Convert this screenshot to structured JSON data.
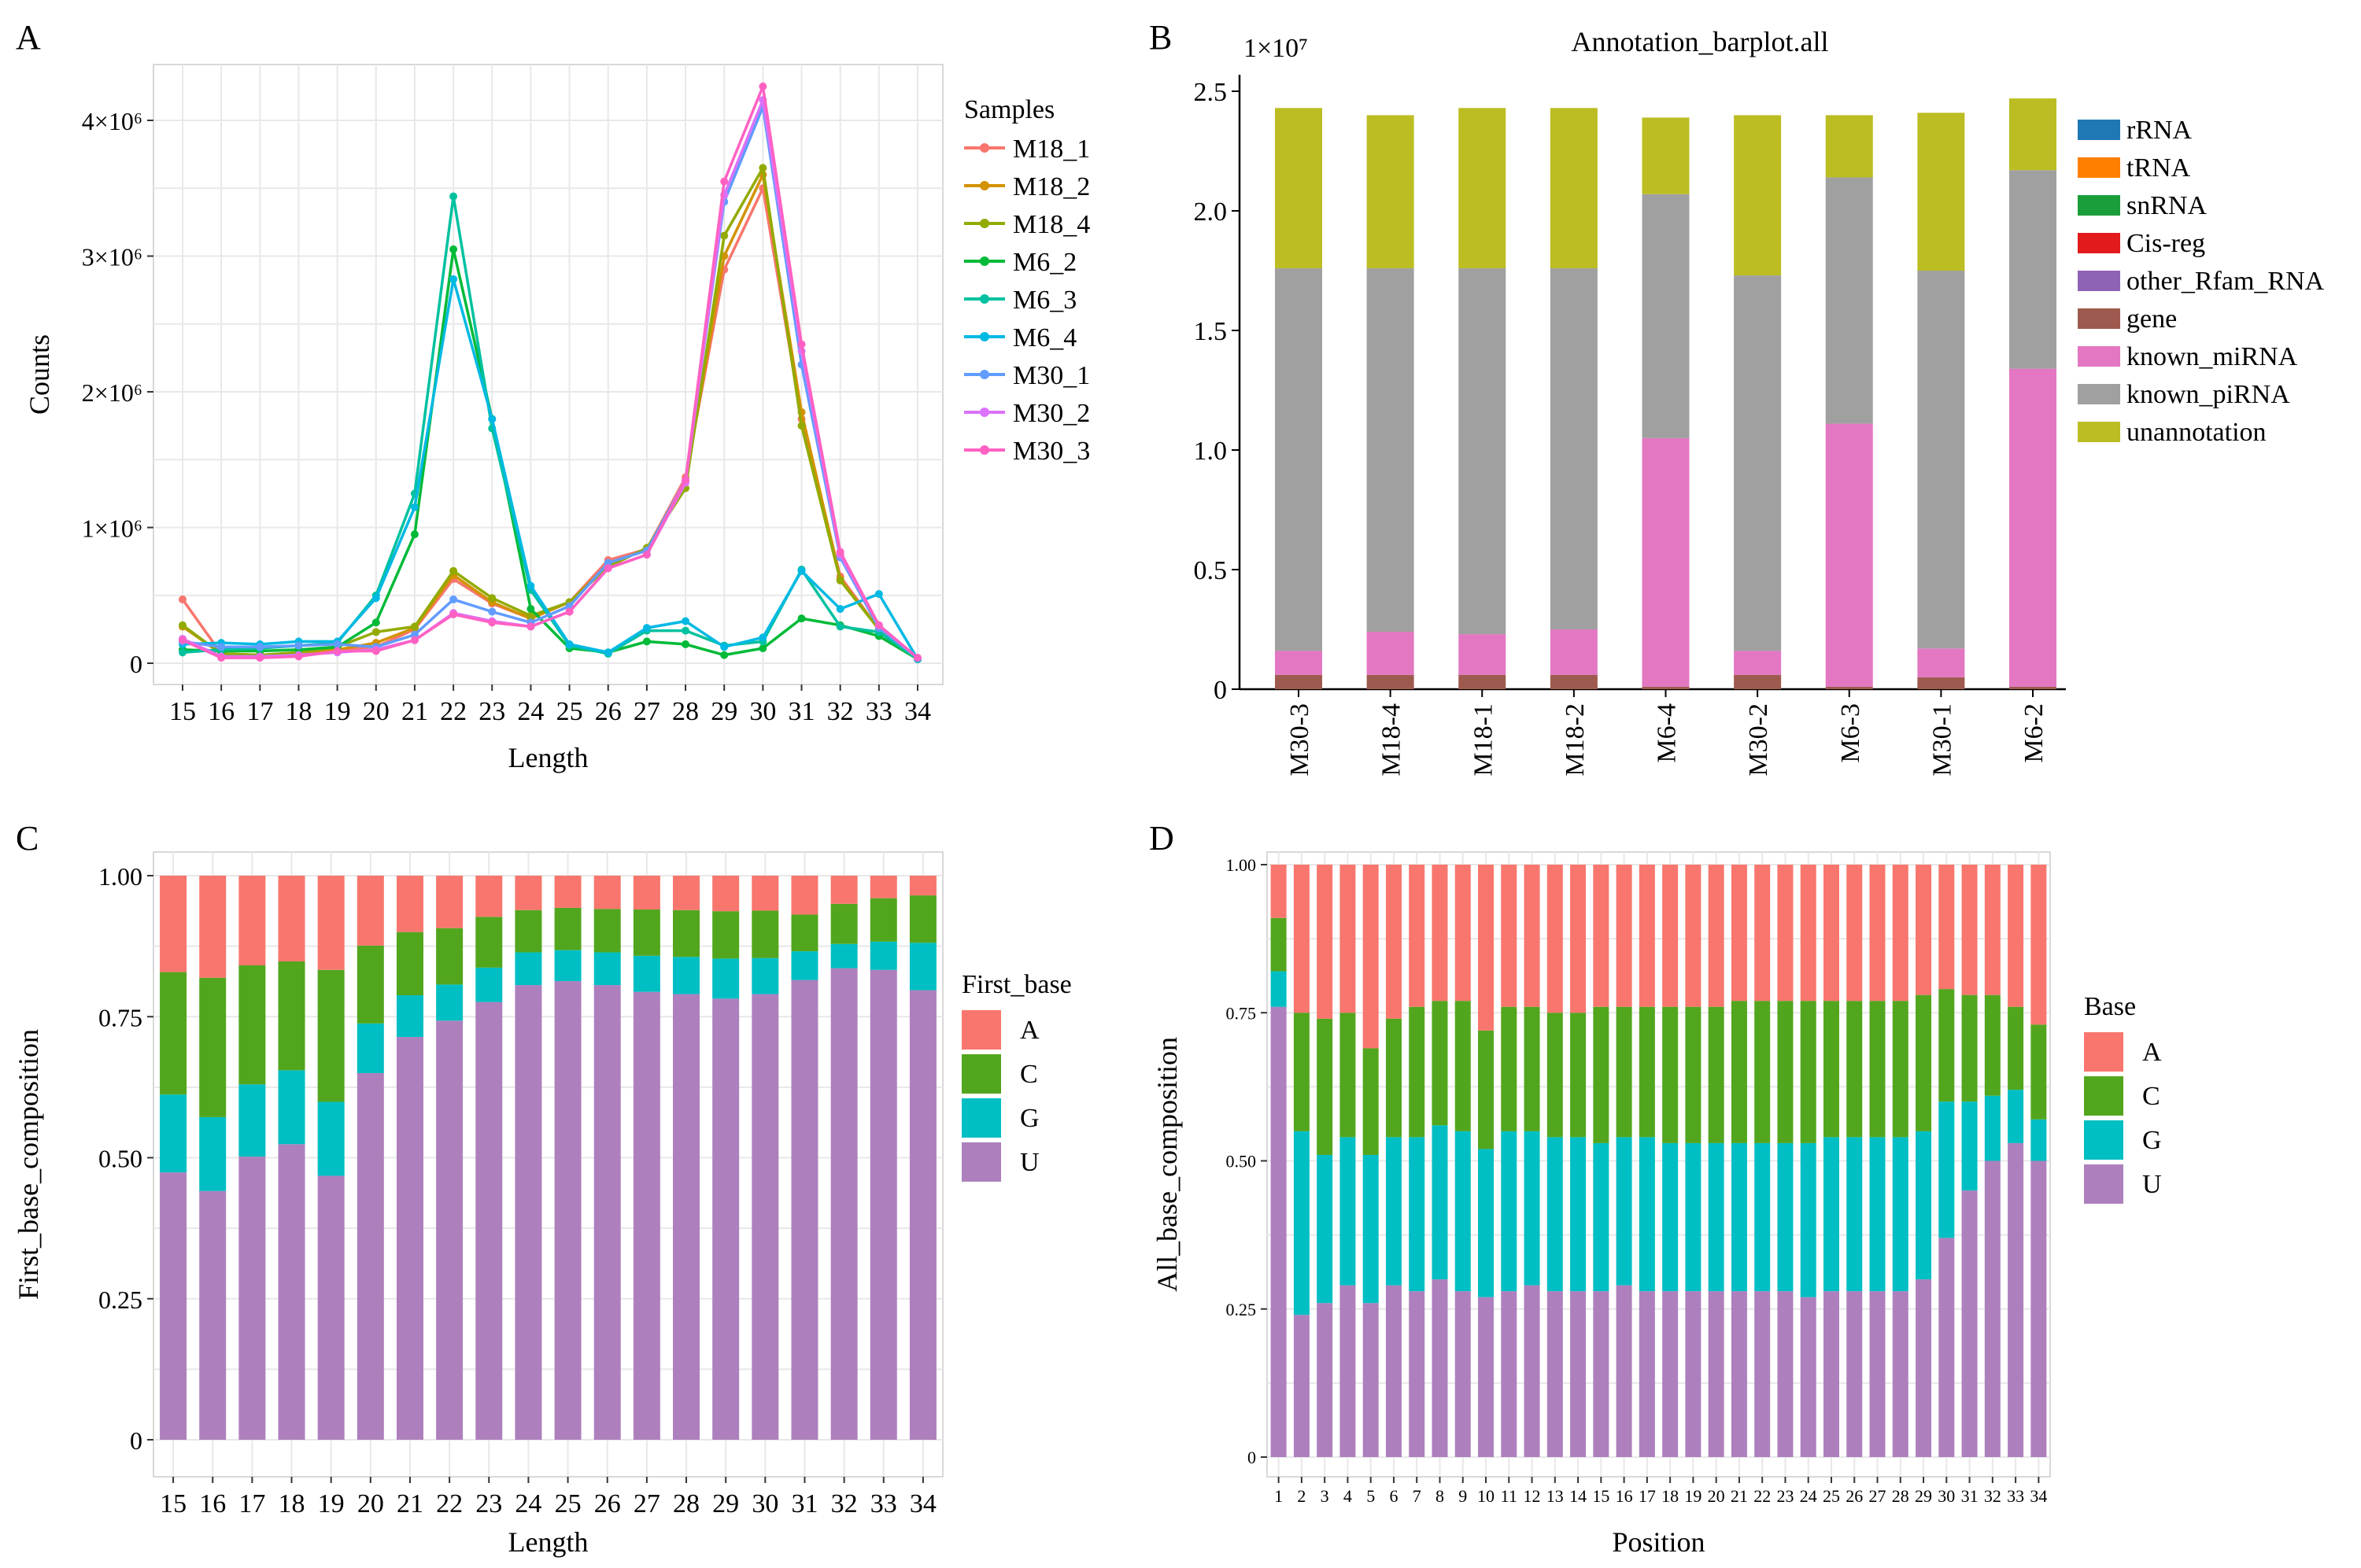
{
  "panels": {
    "a": "A",
    "b": "B",
    "c": "C",
    "d": "D"
  },
  "chart_data": [
    {
      "id": "A",
      "type": "line",
      "title": "",
      "xlabel": "Length",
      "ylabel": "Counts",
      "x": [
        15,
        16,
        17,
        18,
        19,
        20,
        21,
        22,
        23,
        24,
        25,
        26,
        27,
        28,
        29,
        30,
        31,
        32,
        33,
        34
      ],
      "xlim": [
        15,
        34
      ],
      "ylim": [
        0,
        4300000
      ],
      "yticks": [
        0,
        1000000,
        2000000,
        3000000,
        4000000
      ],
      "ytick_labels": [
        "0",
        "1×10⁶",
        "2×10⁶",
        "3×10⁶",
        "4×10⁶"
      ],
      "grid": true,
      "legend_title": "Samples",
      "legend_position": "right",
      "series": [
        {
          "name": "M18_1",
          "color": "#F8766D",
          "values": [
            470000,
            70000,
            60000,
            70000,
            100000,
            120000,
            250000,
            620000,
            440000,
            330000,
            450000,
            760000,
            840000,
            1370000,
            2900000,
            3500000,
            1800000,
            640000,
            250000,
            30000
          ]
        },
        {
          "name": "M18_2",
          "color": "#D39200",
          "values": [
            270000,
            70000,
            60000,
            70000,
            100000,
            150000,
            260000,
            650000,
            450000,
            330000,
            450000,
            730000,
            840000,
            1340000,
            3000000,
            3600000,
            1850000,
            620000,
            250000,
            30000
          ]
        },
        {
          "name": "M18_4",
          "color": "#93AA00",
          "values": [
            280000,
            70000,
            60000,
            80000,
            120000,
            230000,
            270000,
            680000,
            480000,
            350000,
            450000,
            710000,
            850000,
            1290000,
            3150000,
            3650000,
            1750000,
            610000,
            250000,
            30000
          ]
        },
        {
          "name": "M6_2",
          "color": "#00BA38",
          "values": [
            100000,
            90000,
            90000,
            100000,
            120000,
            300000,
            950000,
            3050000,
            1800000,
            400000,
            110000,
            80000,
            160000,
            140000,
            60000,
            110000,
            330000,
            280000,
            200000,
            30000
          ]
        },
        {
          "name": "M6_3",
          "color": "#00C19F",
          "values": [
            80000,
            100000,
            110000,
            130000,
            150000,
            500000,
            1250000,
            3440000,
            1730000,
            540000,
            130000,
            70000,
            240000,
            240000,
            130000,
            160000,
            690000,
            270000,
            230000,
            30000
          ]
        },
        {
          "name": "M6_4",
          "color": "#00B9E3",
          "values": [
            140000,
            150000,
            140000,
            160000,
            160000,
            480000,
            1150000,
            2830000,
            1800000,
            570000,
            140000,
            80000,
            260000,
            310000,
            120000,
            190000,
            680000,
            400000,
            510000,
            30000
          ]
        },
        {
          "name": "M30_1",
          "color": "#619CFF",
          "values": [
            160000,
            120000,
            120000,
            130000,
            140000,
            120000,
            210000,
            470000,
            380000,
            300000,
            420000,
            740000,
            830000,
            1350000,
            3400000,
            4100000,
            2200000,
            780000,
            260000,
            40000
          ]
        },
        {
          "name": "M30_2",
          "color": "#DB72FB",
          "values": [
            180000,
            50000,
            50000,
            60000,
            80000,
            100000,
            170000,
            370000,
            310000,
            270000,
            380000,
            700000,
            800000,
            1330000,
            3450000,
            4150000,
            2300000,
            800000,
            280000,
            40000
          ]
        },
        {
          "name": "M30_3",
          "color": "#FF61C3",
          "values": [
            170000,
            40000,
            40000,
            50000,
            90000,
            90000,
            170000,
            360000,
            300000,
            270000,
            380000,
            700000,
            800000,
            1350000,
            3550000,
            4250000,
            2350000,
            820000,
            280000,
            40000
          ]
        }
      ]
    },
    {
      "id": "B",
      "type": "bar",
      "stacked": true,
      "title": "Annotation_barplot.all",
      "scale_label": "1×10⁷",
      "xlabel": "",
      "ylabel": "",
      "ylim": [
        0,
        2.55
      ],
      "yticks": [
        0,
        0.5,
        1.0,
        1.5,
        2.0,
        2.5
      ],
      "ytick_labels": [
        "0",
        "0.5",
        "1.0",
        "1.5",
        "2.0",
        "2.5"
      ],
      "categories": [
        "M30-3",
        "M18-4",
        "M18-1",
        "M18-2",
        "M6-4",
        "M30-2",
        "M6-3",
        "M30-1",
        "M6-2"
      ],
      "legend_position": "right",
      "legend": [
        {
          "name": "rRNA",
          "color": "#1F78B4"
        },
        {
          "name": "tRNA",
          "color": "#FF7F00"
        },
        {
          "name": "snRNA",
          "color": "#1A9E3A"
        },
        {
          "name": "Cis-reg",
          "color": "#E31A1C"
        },
        {
          "name": "other_Rfam_RNA",
          "color": "#8E63B5"
        },
        {
          "name": "gene",
          "color": "#9E5A4E"
        },
        {
          "name": "known_miRNA",
          "color": "#E377C2"
        },
        {
          "name": "known_piRNA",
          "color": "#A0A0A0"
        },
        {
          "name": "unannotation",
          "color": "#BCBD22"
        }
      ],
      "series": [
        {
          "name": "gene",
          "color": "#9E5A4E",
          "values": [
            0.06,
            0.06,
            0.06,
            0.06,
            0.01,
            0.06,
            0.01,
            0.05,
            0.01
          ]
        },
        {
          "name": "known_miRNA",
          "color": "#E377C2",
          "values": [
            0.1,
            0.18,
            0.17,
            0.19,
            1.04,
            0.1,
            1.1,
            0.12,
            1.33
          ]
        },
        {
          "name": "known_piRNA",
          "color": "#A0A0A0",
          "values": [
            1.6,
            1.52,
            1.53,
            1.51,
            1.02,
            1.57,
            1.03,
            1.58,
            0.83
          ]
        },
        {
          "name": "unannotation",
          "color": "#BCBD22",
          "values": [
            0.67,
            0.64,
            0.67,
            0.67,
            0.32,
            0.67,
            0.26,
            0.66,
            0.3
          ]
        }
      ]
    },
    {
      "id": "C",
      "type": "bar",
      "stacked": true,
      "title": "",
      "xlabel": "Length",
      "ylabel": "First_base_composition",
      "ylim": [
        0,
        1.0
      ],
      "yticks": [
        0,
        0.25,
        0.5,
        0.75,
        1.0
      ],
      "ytick_labels": [
        "0",
        "0.25",
        "0.50",
        "0.75",
        "1.00"
      ],
      "grid": true,
      "categories": [
        "15",
        "16",
        "17",
        "18",
        "19",
        "20",
        "21",
        "22",
        "23",
        "24",
        "25",
        "26",
        "27",
        "28",
        "29",
        "30",
        "31",
        "32",
        "33",
        "34"
      ],
      "legend_title": "First_base",
      "legend_position": "right",
      "legend": [
        {
          "name": "A",
          "color": "#F8766D"
        },
        {
          "name": "C",
          "color": "#52A61D"
        },
        {
          "name": "G",
          "color": "#00BFC4"
        },
        {
          "name": "U",
          "color": "#AD80BD"
        }
      ],
      "series": [
        {
          "name": "U",
          "color": "#AD80BD",
          "values": [
            0.474,
            0.441,
            0.502,
            0.524,
            0.468,
            0.65,
            0.714,
            0.743,
            0.776,
            0.806,
            0.813,
            0.806,
            0.794,
            0.79,
            0.782,
            0.79,
            0.815,
            0.836,
            0.833,
            0.797
          ]
        },
        {
          "name": "G",
          "color": "#00BFC4",
          "values": [
            0.138,
            0.131,
            0.128,
            0.131,
            0.131,
            0.088,
            0.074,
            0.064,
            0.061,
            0.058,
            0.055,
            0.058,
            0.064,
            0.066,
            0.071,
            0.064,
            0.051,
            0.043,
            0.05,
            0.084
          ]
        },
        {
          "name": "C",
          "color": "#52A61D",
          "values": [
            0.217,
            0.247,
            0.211,
            0.193,
            0.234,
            0.138,
            0.112,
            0.1,
            0.09,
            0.075,
            0.075,
            0.077,
            0.082,
            0.083,
            0.084,
            0.084,
            0.065,
            0.071,
            0.077,
            0.084
          ]
        },
        {
          "name": "A",
          "color": "#F8766D",
          "values": [
            0.171,
            0.181,
            0.159,
            0.152,
            0.167,
            0.124,
            0.1,
            0.093,
            0.073,
            0.061,
            0.057,
            0.059,
            0.06,
            0.061,
            0.063,
            0.062,
            0.069,
            0.05,
            0.04,
            0.035
          ]
        }
      ]
    },
    {
      "id": "D",
      "type": "bar",
      "stacked": true,
      "title": "",
      "xlabel": "Position",
      "ylabel": "All_base_composition",
      "ylim": [
        0,
        1.0
      ],
      "yticks": [
        0,
        0.25,
        0.5,
        0.75,
        1.0
      ],
      "ytick_labels": [
        "0",
        "0.25",
        "0.50",
        "0.75",
        "1.00"
      ],
      "grid": true,
      "categories": [
        "1",
        "2",
        "3",
        "4",
        "5",
        "6",
        "7",
        "8",
        "9",
        "10",
        "11",
        "12",
        "13",
        "14",
        "15",
        "16",
        "17",
        "18",
        "19",
        "20",
        "21",
        "22",
        "23",
        "24",
        "25",
        "26",
        "27",
        "28",
        "29",
        "30",
        "31",
        "32",
        "33",
        "34"
      ],
      "legend_title": "Base",
      "legend_position": "right",
      "legend": [
        {
          "name": "A",
          "color": "#F8766D"
        },
        {
          "name": "C",
          "color": "#52A61D"
        },
        {
          "name": "G",
          "color": "#00BFC4"
        },
        {
          "name": "U",
          "color": "#AD80BD"
        }
      ],
      "series": [
        {
          "name": "U",
          "color": "#AD80BD",
          "values": [
            0.76,
            0.24,
            0.26,
            0.29,
            0.26,
            0.29,
            0.28,
            0.3,
            0.28,
            0.27,
            0.28,
            0.29,
            0.28,
            0.28,
            0.28,
            0.29,
            0.28,
            0.28,
            0.28,
            0.28,
            0.28,
            0.28,
            0.28,
            0.27,
            0.28,
            0.28,
            0.28,
            0.28,
            0.3,
            0.37,
            0.45,
            0.5,
            0.53,
            0.5
          ]
        },
        {
          "name": "G",
          "color": "#00BFC4",
          "values": [
            0.06,
            0.31,
            0.25,
            0.25,
            0.25,
            0.25,
            0.26,
            0.26,
            0.27,
            0.25,
            0.27,
            0.26,
            0.26,
            0.26,
            0.25,
            0.25,
            0.26,
            0.25,
            0.25,
            0.25,
            0.25,
            0.25,
            0.25,
            0.26,
            0.26,
            0.26,
            0.26,
            0.26,
            0.25,
            0.23,
            0.15,
            0.11,
            0.09,
            0.07
          ]
        },
        {
          "name": "C",
          "color": "#52A61D",
          "values": [
            0.09,
            0.2,
            0.23,
            0.21,
            0.18,
            0.2,
            0.22,
            0.21,
            0.22,
            0.2,
            0.21,
            0.21,
            0.21,
            0.21,
            0.23,
            0.22,
            0.22,
            0.23,
            0.23,
            0.23,
            0.24,
            0.24,
            0.24,
            0.24,
            0.23,
            0.23,
            0.23,
            0.23,
            0.23,
            0.19,
            0.18,
            0.17,
            0.14,
            0.16
          ]
        },
        {
          "name": "A",
          "color": "#F8766D",
          "values": [
            0.09,
            0.25,
            0.26,
            0.25,
            0.31,
            0.26,
            0.24,
            0.23,
            0.23,
            0.28,
            0.24,
            0.24,
            0.25,
            0.25,
            0.24,
            0.24,
            0.24,
            0.24,
            0.24,
            0.24,
            0.23,
            0.23,
            0.23,
            0.23,
            0.23,
            0.23,
            0.23,
            0.23,
            0.22,
            0.21,
            0.22,
            0.22,
            0.24,
            0.27
          ]
        }
      ]
    }
  ]
}
